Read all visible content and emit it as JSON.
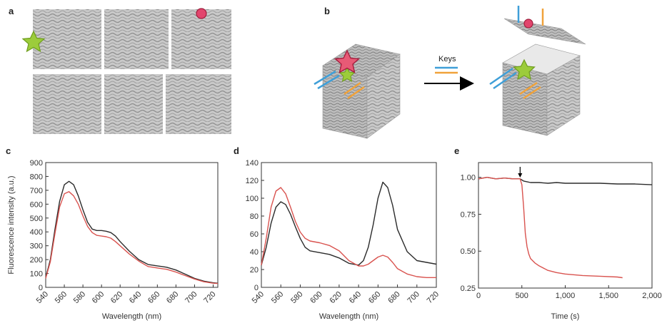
{
  "panels": {
    "a": {
      "label": "a"
    },
    "b": {
      "label": "b",
      "arrow_label": "Keys"
    }
  },
  "colors": {
    "black_trace": "#2b2b2b",
    "red_trace": "#d9534f",
    "origami_gray": "#bfbfbf",
    "star_red": "#e75a76",
    "star_green": "#9ccc3b",
    "circle_pink": "#e2456d",
    "key_blue": "#3f9fd8",
    "key_orange": "#f0a23a"
  },
  "chart_data": [
    {
      "panel": "c",
      "type": "line",
      "title": "",
      "xlabel": "Wavelength (nm)",
      "ylabel": "Fluorescence intensity (a.u.)",
      "xlim": [
        540,
        725
      ],
      "ylim": [
        0,
        900
      ],
      "xticks": [
        540,
        560,
        580,
        600,
        620,
        640,
        660,
        680,
        700,
        720
      ],
      "yticks": [
        0,
        100,
        200,
        300,
        400,
        500,
        600,
        700,
        800,
        900
      ],
      "x": [
        540,
        545,
        550,
        555,
        560,
        565,
        570,
        575,
        580,
        585,
        590,
        595,
        600,
        605,
        610,
        615,
        620,
        630,
        640,
        650,
        660,
        665,
        670,
        680,
        690,
        700,
        710,
        720,
        725
      ],
      "series": [
        {
          "color": "#2b2b2b",
          "values": [
            70,
            200,
            420,
            620,
            740,
            765,
            740,
            660,
            560,
            470,
            420,
            410,
            410,
            405,
            395,
            370,
            330,
            260,
            200,
            165,
            155,
            150,
            145,
            125,
            95,
            65,
            45,
            33,
            30
          ]
        },
        {
          "color": "#d9534f",
          "values": [
            65,
            185,
            390,
            580,
            675,
            690,
            660,
            600,
            515,
            440,
            395,
            375,
            370,
            365,
            355,
            330,
            300,
            240,
            190,
            150,
            140,
            135,
            130,
            110,
            85,
            60,
            40,
            30,
            28
          ]
        }
      ]
    },
    {
      "panel": "d",
      "type": "line",
      "title": "",
      "xlabel": "Wavelength (nm)",
      "ylabel": "",
      "xlim": [
        540,
        720
      ],
      "ylim": [
        0,
        140
      ],
      "xticks": [
        540,
        560,
        580,
        600,
        620,
        640,
        660,
        680,
        700,
        720
      ],
      "yticks": [
        0,
        20,
        40,
        60,
        80,
        100,
        120,
        140
      ],
      "x": [
        540,
        545,
        550,
        555,
        560,
        565,
        570,
        575,
        580,
        585,
        590,
        600,
        610,
        620,
        630,
        640,
        645,
        650,
        655,
        660,
        665,
        670,
        675,
        680,
        690,
        700,
        710,
        720
      ],
      "series": [
        {
          "color": "#2b2b2b",
          "values": [
            25,
            45,
            72,
            90,
            96,
            93,
            82,
            68,
            55,
            45,
            41,
            39,
            37,
            33,
            27,
            25,
            30,
            45,
            70,
            100,
            118,
            112,
            92,
            65,
            40,
            30,
            28,
            26
          ]
        },
        {
          "color": "#d9534f",
          "values": [
            25,
            55,
            90,
            108,
            112,
            105,
            90,
            74,
            62,
            55,
            52,
            50,
            47,
            41,
            30,
            24,
            24,
            26,
            30,
            34,
            36,
            34,
            28,
            21,
            15,
            12,
            11,
            11
          ]
        }
      ]
    },
    {
      "panel": "e",
      "type": "line",
      "title": "",
      "xlabel": "Time (s)",
      "ylabel": "",
      "xlim": [
        0,
        2000
      ],
      "ylim": [
        0.25,
        1.1
      ],
      "xticks": [
        0,
        500,
        1000,
        1500,
        2000
      ],
      "xtick_labels": [
        "0",
        "500",
        "1,000",
        "1,500",
        "2,000"
      ],
      "yticks": [
        0.25,
        0.5,
        0.75,
        1.0
      ],
      "ytick_labels": [
        "0.25",
        "0.50",
        "0.75",
        "1.00"
      ],
      "annotation": "arrow at t = 480 s",
      "series": [
        {
          "color": "#2b2b2b",
          "x": [
            0,
            100,
            200,
            300,
            400,
            480,
            520,
            600,
            700,
            800,
            900,
            1000,
            1200,
            1400,
            1600,
            1800,
            2000
          ],
          "values": [
            0.99,
            1.0,
            0.99,
            0.995,
            0.99,
            0.99,
            0.975,
            0.965,
            0.965,
            0.96,
            0.965,
            0.96,
            0.96,
            0.96,
            0.955,
            0.955,
            0.95
          ]
        },
        {
          "color": "#d9534f",
          "x": [
            0,
            100,
            200,
            300,
            400,
            480,
            500,
            520,
            540,
            560,
            580,
            600,
            650,
            700,
            800,
            900,
            1000,
            1200,
            1400,
            1600,
            1660
          ],
          "values": [
            0.99,
            1.0,
            0.99,
            0.995,
            0.99,
            0.99,
            0.95,
            0.8,
            0.62,
            0.53,
            0.48,
            0.45,
            0.42,
            0.4,
            0.37,
            0.355,
            0.345,
            0.335,
            0.33,
            0.325,
            0.32
          ]
        }
      ]
    }
  ]
}
